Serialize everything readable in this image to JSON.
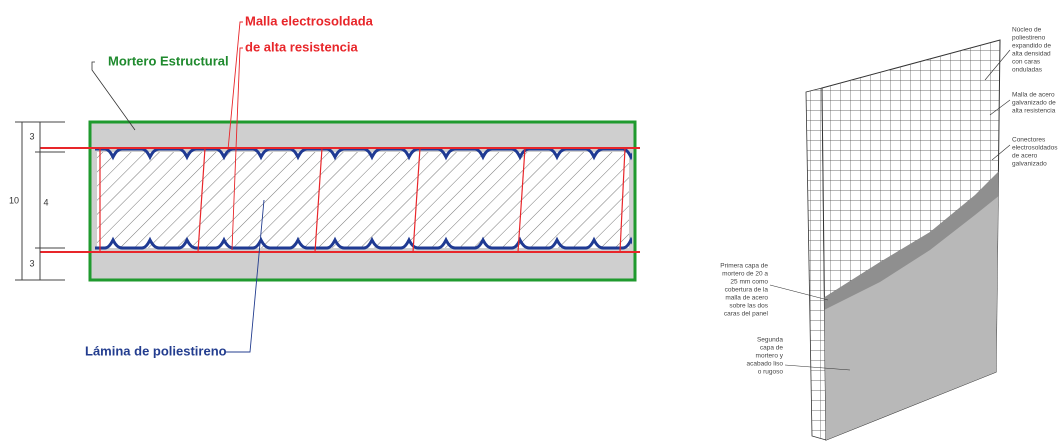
{
  "section": {
    "mortar_label": "Mortero Estructural",
    "mesh_label": [
      "Malla electrosoldada",
      "de alta resistencia"
    ],
    "foam_label": "Lámina de poliestireno",
    "dimensions": [
      "3",
      "4",
      "3",
      "10"
    ]
  },
  "panel": {
    "labels": [
      [
        "Núcleo de",
        "poliestireno",
        "expandido de",
        "alta densidad",
        "con caras",
        "onduladas"
      ],
      [
        "Malla de acero",
        "galvanizado de",
        "alta resistencia"
      ],
      [
        "Conectores",
        "electrosoldados",
        "de acero",
        "galvanizado"
      ],
      [
        "Primera capa de",
        "mortero de 20 a",
        "25 mm como",
        "cobertura de la",
        "malla de acero",
        "sobre las dos",
        "caras del panel"
      ],
      [
        "Segunda",
        "capa de",
        "mortero y",
        "acabado liso",
        "o rugoso"
      ]
    ]
  }
}
